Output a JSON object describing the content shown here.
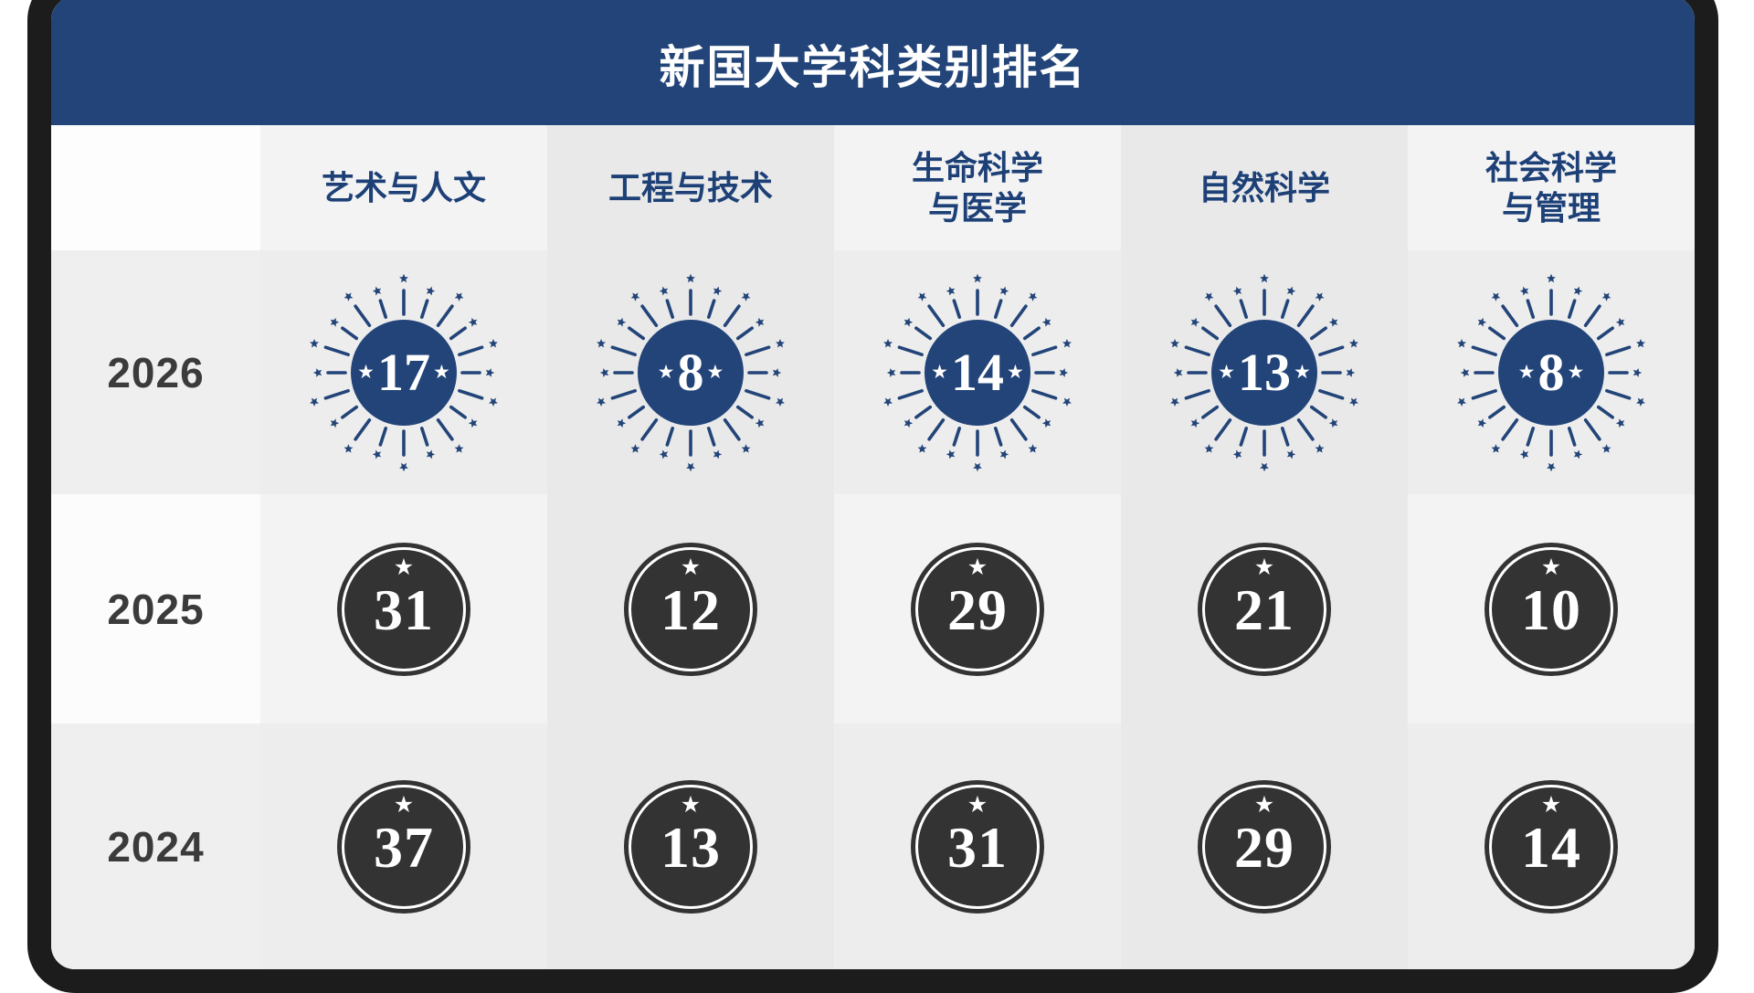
{
  "title": "新国大学科类别排名",
  "icons": {
    "star": "★"
  },
  "colors": {
    "navy": "#224478",
    "dark_badge": "#333333",
    "card_border": "#1c1c1c"
  },
  "table": {
    "columns": [
      {
        "line1": "艺术与人文",
        "line2": ""
      },
      {
        "line1": "工程与技术",
        "line2": ""
      },
      {
        "line1": "生命科学",
        "line2": "与医学"
      },
      {
        "line1": "自然科学",
        "line2": ""
      },
      {
        "line1": "社会科学",
        "line2": "与管理"
      }
    ],
    "rows": [
      {
        "year": "2026",
        "style": "highlight",
        "values": [
          "17",
          "8",
          "14",
          "13",
          "8"
        ]
      },
      {
        "year": "2025",
        "style": "dark",
        "values": [
          "31",
          "12",
          "29",
          "21",
          "10"
        ]
      },
      {
        "year": "2024",
        "style": "dark",
        "values": [
          "37",
          "13",
          "31",
          "29",
          "14"
        ]
      }
    ]
  },
  "chart_data": {
    "type": "table",
    "title": "新国大学科类别排名",
    "categories": [
      "艺术与人文",
      "工程与技术",
      "生命科学与医学",
      "自然科学",
      "社会科学与管理"
    ],
    "series": [
      {
        "name": "2026",
        "values": [
          17,
          8,
          14,
          13,
          8
        ]
      },
      {
        "name": "2025",
        "values": [
          31,
          12,
          29,
          21,
          10
        ]
      },
      {
        "name": "2024",
        "values": [
          37,
          13,
          31,
          29,
          14
        ]
      }
    ],
    "legend_position": "left-column",
    "notes": "2026 row shown as navy starburst badges; 2025/2024 rows shown as dark circular badges"
  }
}
